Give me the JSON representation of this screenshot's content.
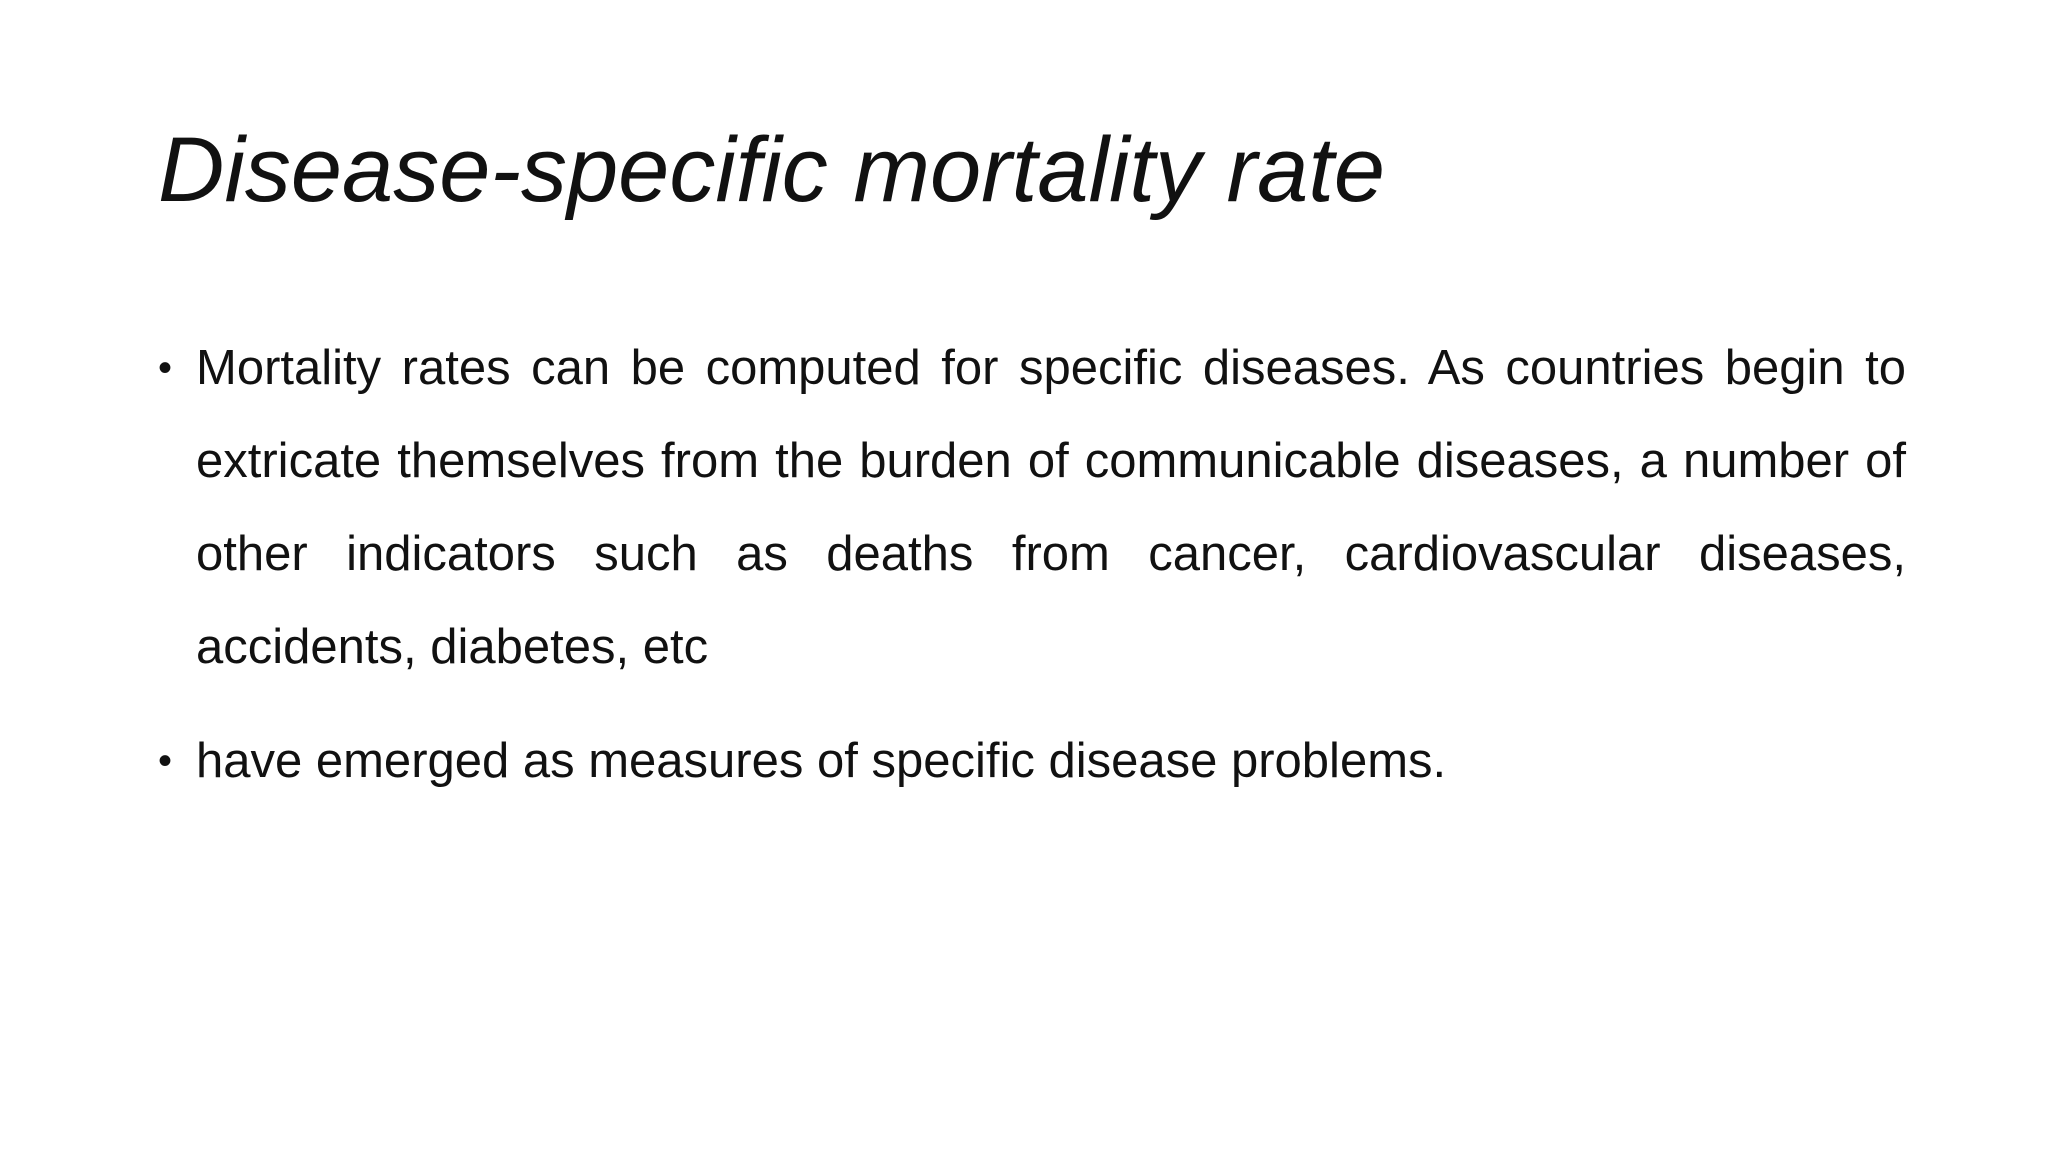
{
  "slide": {
    "title": "Disease-specific mortality rate",
    "bullet_symbol": "•",
    "bullets": [
      "Mortality rates can be computed for specific diseases. As countries begin to extricate themselves from the burden of communicable diseases, a number of other indicators such as deaths from cancer, cardiovascular diseases, accidents, diabetes, etc",
      "have emerged as measures of specific disease problems."
    ]
  }
}
